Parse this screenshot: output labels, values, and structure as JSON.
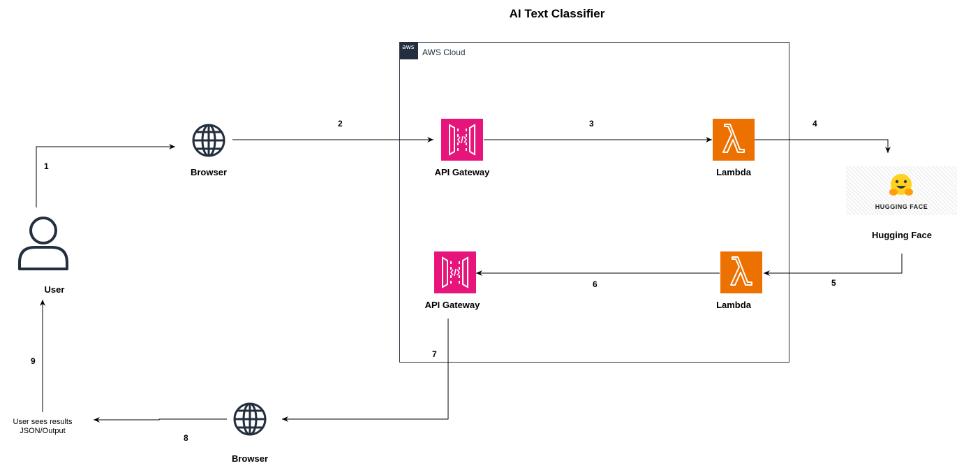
{
  "title": "AI Text Classifier",
  "aws_cloud": {
    "label": "AWS Cloud",
    "badge": "aws"
  },
  "nodes": {
    "user": "User",
    "browser_top": "Browser",
    "browser_bottom": "Browser",
    "api_gateway_top": "API Gateway",
    "api_gateway_bottom": "API Gateway",
    "lambda_top": "Lambda",
    "lambda_bottom": "Lambda",
    "hugging_face": "Hugging Face",
    "hugging_face_logo_text": "HUGGING FACE",
    "results_line1": "User sees results",
    "results_line2": "JSON/Output"
  },
  "steps": [
    "1",
    "2",
    "3",
    "4",
    "5",
    "6",
    "7",
    "8",
    "9"
  ],
  "colors": {
    "api_gateway": "#E7157B",
    "lambda": "#ED7100",
    "aws_dark": "#232F3E"
  },
  "icons": [
    "user-icon",
    "globe-icon",
    "api-gateway-icon",
    "lambda-icon",
    "hugging-face-emoji-icon"
  ]
}
